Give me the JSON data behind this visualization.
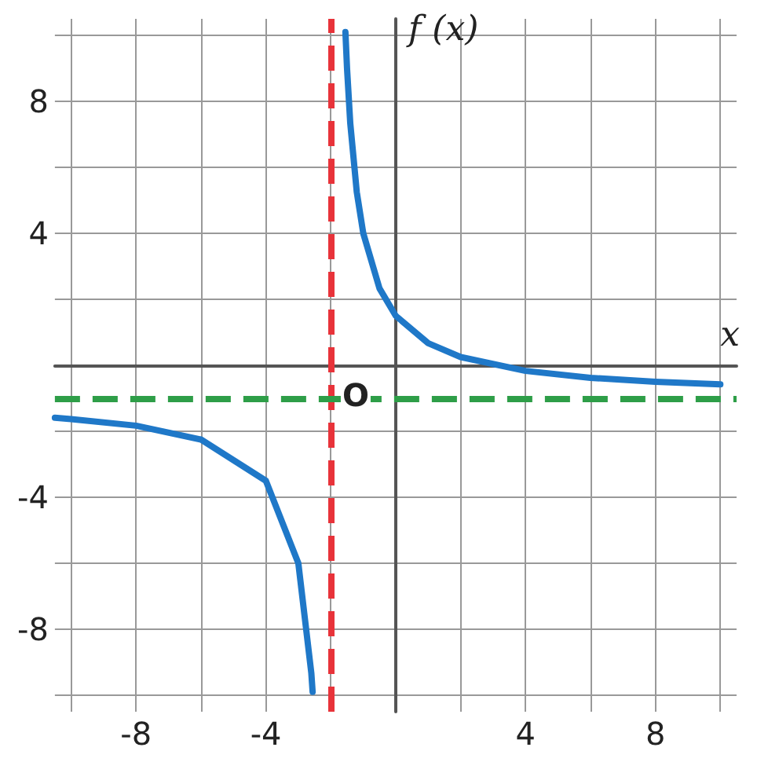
{
  "chart_data": {
    "type": "line",
    "xlabel": "x",
    "ylabel": "f (x)",
    "series": [
      {
        "color": "#1f78c8",
        "x": [
          -1.55,
          -1.5,
          -1.4,
          -1.2,
          -1,
          -0.5,
          0,
          1,
          2,
          4,
          6,
          8,
          10
        ],
        "values": [
          10.1,
          9,
          7.33,
          5.25,
          4,
          2.33,
          1.5,
          0.67,
          0.25,
          -0.17,
          -0.38,
          -0.5,
          -0.58
        ]
      },
      {
        "color": "#1f78c8",
        "x": [
          -10.5,
          -10,
          -8,
          -6,
          -4,
          -3,
          -2.6,
          -2.56
        ],
        "values": [
          -1.59,
          -1.63,
          -1.83,
          -2.25,
          -3.5,
          -6,
          -9.33,
          -9.9
        ]
      }
    ],
    "ref_lines": [
      {
        "axis": "x",
        "value": -2,
        "color": "#e8333a",
        "line_style": "dashed"
      },
      {
        "axis": "y",
        "value": -1,
        "color": "#2e9e48",
        "line_style": "dashed"
      }
    ],
    "annotations": [
      "O"
    ],
    "xlim": [
      -10.5,
      10.5
    ],
    "ylim": [
      -10.5,
      10.5
    ],
    "xticks": [
      {
        "value": -10,
        "label": null
      },
      -8,
      {
        "value": -6,
        "label": null
      },
      -4,
      {
        "value": -2,
        "label": null
      },
      {
        "value": 0,
        "label": null
      },
      {
        "value": 2,
        "label": null
      },
      4,
      {
        "value": 6,
        "label": null
      },
      8,
      {
        "value": 10,
        "label": null
      }
    ],
    "yticks": [
      {
        "value": -10,
        "label": null
      },
      -8,
      {
        "value": -6,
        "label": null
      },
      -4,
      {
        "value": -2,
        "label": null
      },
      {
        "value": 0,
        "label": null
      },
      {
        "value": 2,
        "label": null
      },
      4,
      {
        "value": 6,
        "label": null
      },
      8,
      {
        "value": 10,
        "label": null
      }
    ],
    "grid": true,
    "line_style": "solid",
    "marker": "none"
  }
}
